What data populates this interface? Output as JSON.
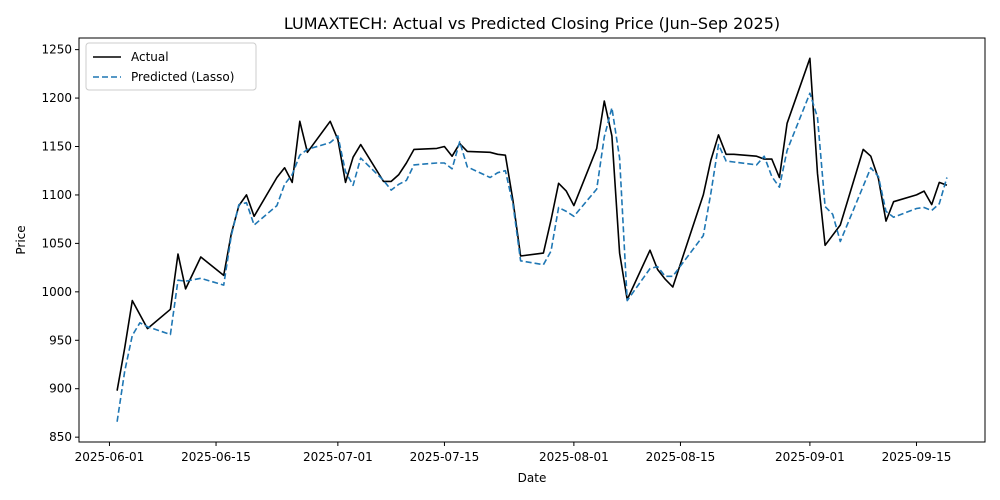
{
  "chart_data": {
    "type": "line",
    "title": "LUMAXTECH: Actual vs Predicted Closing Price (Jun–Sep 2025)",
    "xlabel": "Date",
    "ylabel": "Price",
    "xlim": [
      "2025-05-28",
      "2025-09-24"
    ],
    "ylim": [
      845,
      1262
    ],
    "x_ticks": [
      "2025-06-01",
      "2025-06-15",
      "2025-07-01",
      "2025-07-15",
      "2025-08-01",
      "2025-08-15",
      "2025-09-01",
      "2025-09-15"
    ],
    "y_ticks": [
      850,
      900,
      950,
      1000,
      1050,
      1100,
      1150,
      1200,
      1250
    ],
    "grid": false,
    "legend": "top-left",
    "series": [
      {
        "name": "Actual",
        "color": "#000000",
        "dash": "solid",
        "points": [
          [
            "2025-06-02",
            898
          ],
          [
            "2025-06-03",
            942
          ],
          [
            "2025-06-04",
            991
          ],
          [
            "2025-06-06",
            962
          ],
          [
            "2025-06-09",
            982
          ],
          [
            "2025-06-10",
            1039
          ],
          [
            "2025-06-11",
            1003
          ],
          [
            "2025-06-13",
            1036
          ],
          [
            "2025-06-16",
            1017
          ],
          [
            "2025-06-17",
            1060
          ],
          [
            "2025-06-18",
            1089
          ],
          [
            "2025-06-19",
            1100
          ],
          [
            "2025-06-20",
            1078
          ],
          [
            "2025-06-23",
            1118
          ],
          [
            "2025-06-24",
            1128
          ],
          [
            "2025-06-25",
            1113
          ],
          [
            "2025-06-26",
            1176
          ],
          [
            "2025-06-27",
            1144
          ],
          [
            "2025-06-30",
            1176
          ],
          [
            "2025-07-01",
            1157
          ],
          [
            "2025-07-02",
            1113
          ],
          [
            "2025-07-03",
            1139
          ],
          [
            "2025-07-04",
            1152
          ],
          [
            "2025-07-07",
            1114
          ],
          [
            "2025-07-08",
            1114
          ],
          [
            "2025-07-09",
            1121
          ],
          [
            "2025-07-10",
            1133
          ],
          [
            "2025-07-11",
            1147
          ],
          [
            "2025-07-14",
            1148
          ],
          [
            "2025-07-15",
            1150
          ],
          [
            "2025-07-16",
            1140
          ],
          [
            "2025-07-17",
            1153
          ],
          [
            "2025-07-18",
            1145
          ],
          [
            "2025-07-21",
            1144
          ],
          [
            "2025-07-22",
            1142
          ],
          [
            "2025-07-23",
            1141
          ],
          [
            "2025-07-24",
            1094
          ],
          [
            "2025-07-25",
            1037
          ],
          [
            "2025-07-28",
            1040
          ],
          [
            "2025-07-29",
            1074
          ],
          [
            "2025-07-30",
            1112
          ],
          [
            "2025-07-31",
            1104
          ],
          [
            "2025-08-01",
            1089
          ],
          [
            "2025-08-04",
            1148
          ],
          [
            "2025-08-05",
            1197
          ],
          [
            "2025-08-06",
            1161
          ],
          [
            "2025-08-07",
            1040
          ],
          [
            "2025-08-08",
            992
          ],
          [
            "2025-08-11",
            1043
          ],
          [
            "2025-08-12",
            1023
          ],
          [
            "2025-08-13",
            1013
          ],
          [
            "2025-08-14",
            1005
          ],
          [
            "2025-08-18",
            1100
          ],
          [
            "2025-08-19",
            1136
          ],
          [
            "2025-08-20",
            1162
          ],
          [
            "2025-08-21",
            1142
          ],
          [
            "2025-08-22",
            1142
          ],
          [
            "2025-08-25",
            1140
          ],
          [
            "2025-08-26",
            1137
          ],
          [
            "2025-08-27",
            1137
          ],
          [
            "2025-08-28",
            1118
          ],
          [
            "2025-08-29",
            1174
          ],
          [
            "2025-09-01",
            1241
          ],
          [
            "2025-09-02",
            1122
          ],
          [
            "2025-09-03",
            1048
          ],
          [
            "2025-09-05",
            1069
          ],
          [
            "2025-09-08",
            1147
          ],
          [
            "2025-09-09",
            1140
          ],
          [
            "2025-09-10",
            1117
          ],
          [
            "2025-09-11",
            1073
          ],
          [
            "2025-09-12",
            1093
          ],
          [
            "2025-09-15",
            1100
          ],
          [
            "2025-09-16",
            1104
          ],
          [
            "2025-09-17",
            1090
          ],
          [
            "2025-09-18",
            1113
          ],
          [
            "2025-09-19",
            1110
          ]
        ]
      },
      {
        "name": "Predicted (Lasso)",
        "color": "#1f77b4",
        "dash": "dashed",
        "points": [
          [
            "2025-06-02",
            866
          ],
          [
            "2025-06-03",
            918
          ],
          [
            "2025-06-04",
            955
          ],
          [
            "2025-06-05",
            968
          ],
          [
            "2025-06-06",
            964
          ],
          [
            "2025-06-09",
            956
          ],
          [
            "2025-06-10",
            1012
          ],
          [
            "2025-06-11",
            1011
          ],
          [
            "2025-06-13",
            1014
          ],
          [
            "2025-06-16",
            1007
          ],
          [
            "2025-06-17",
            1058
          ],
          [
            "2025-06-18",
            1090
          ],
          [
            "2025-06-19",
            1092
          ],
          [
            "2025-06-20",
            1069
          ],
          [
            "2025-06-23",
            1089
          ],
          [
            "2025-06-24",
            1111
          ],
          [
            "2025-06-25",
            1121
          ],
          [
            "2025-06-26",
            1141
          ],
          [
            "2025-06-27",
            1147
          ],
          [
            "2025-06-30",
            1154
          ],
          [
            "2025-07-01",
            1161
          ],
          [
            "2025-07-02",
            1124
          ],
          [
            "2025-07-03",
            1110
          ],
          [
            "2025-07-04",
            1138
          ],
          [
            "2025-07-07",
            1115
          ],
          [
            "2025-07-08",
            1105
          ],
          [
            "2025-07-09",
            1111
          ],
          [
            "2025-07-10",
            1115
          ],
          [
            "2025-07-11",
            1131
          ],
          [
            "2025-07-14",
            1133
          ],
          [
            "2025-07-15",
            1133
          ],
          [
            "2025-07-16",
            1127
          ],
          [
            "2025-07-17",
            1155
          ],
          [
            "2025-07-18",
            1129
          ],
          [
            "2025-07-21",
            1118
          ],
          [
            "2025-07-22",
            1123
          ],
          [
            "2025-07-23",
            1125
          ],
          [
            "2025-07-24",
            1090
          ],
          [
            "2025-07-25",
            1032
          ],
          [
            "2025-07-28",
            1028
          ],
          [
            "2025-07-29",
            1042
          ],
          [
            "2025-07-30",
            1087
          ],
          [
            "2025-07-31",
            1083
          ],
          [
            "2025-08-01",
            1078
          ],
          [
            "2025-08-04",
            1106
          ],
          [
            "2025-08-05",
            1160
          ],
          [
            "2025-08-06",
            1190
          ],
          [
            "2025-08-07",
            1138
          ],
          [
            "2025-08-08",
            991
          ],
          [
            "2025-08-11",
            1024
          ],
          [
            "2025-08-12",
            1026
          ],
          [
            "2025-08-13",
            1016
          ],
          [
            "2025-08-14",
            1016
          ],
          [
            "2025-08-18",
            1058
          ],
          [
            "2025-08-19",
            1102
          ],
          [
            "2025-08-20",
            1152
          ],
          [
            "2025-08-21",
            1135
          ],
          [
            "2025-08-22",
            1134
          ],
          [
            "2025-08-25",
            1131
          ],
          [
            "2025-08-26",
            1140
          ],
          [
            "2025-08-27",
            1119
          ],
          [
            "2025-08-28",
            1108
          ],
          [
            "2025-08-29",
            1146
          ],
          [
            "2025-09-01",
            1205
          ],
          [
            "2025-09-02",
            1180
          ],
          [
            "2025-09-03",
            1088
          ],
          [
            "2025-09-04",
            1080
          ],
          [
            "2025-09-05",
            1052
          ],
          [
            "2025-09-08",
            1109
          ],
          [
            "2025-09-09",
            1128
          ],
          [
            "2025-09-10",
            1119
          ],
          [
            "2025-09-11",
            1083
          ],
          [
            "2025-09-12",
            1077
          ],
          [
            "2025-09-15",
            1086
          ],
          [
            "2025-09-16",
            1087
          ],
          [
            "2025-09-17",
            1084
          ],
          [
            "2025-09-18",
            1091
          ],
          [
            "2025-09-19",
            1118
          ]
        ]
      }
    ]
  }
}
